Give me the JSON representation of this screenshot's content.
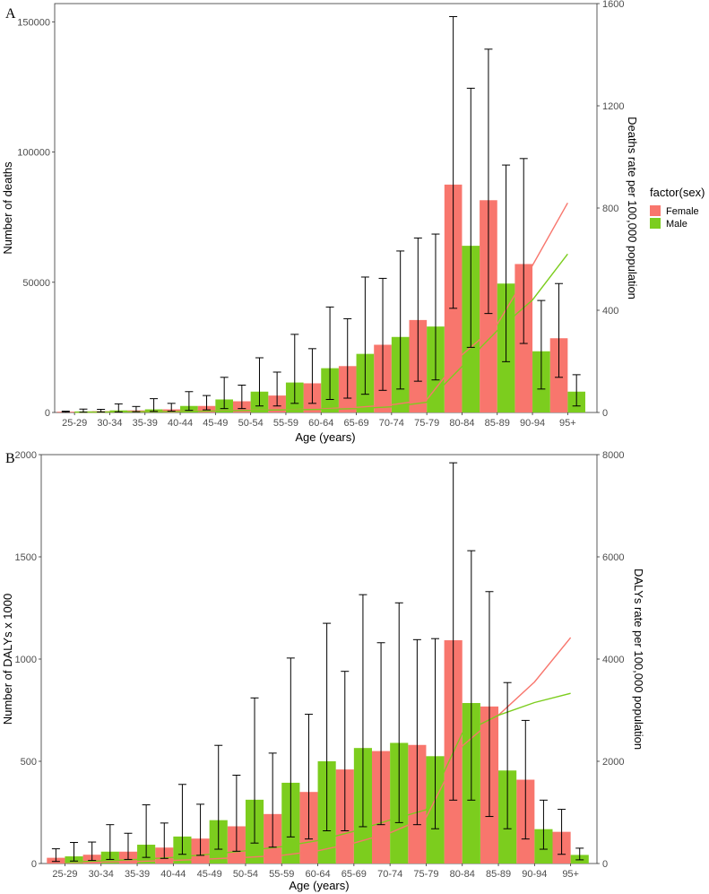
{
  "chart_data": [
    {
      "type": "bar",
      "panel_label": "A",
      "categories": [
        "25-29",
        "30-34",
        "35-39",
        "40-44",
        "45-49",
        "50-54",
        "55-59",
        "60-64",
        "65-69",
        "70-74",
        "75-79",
        "80-84",
        "85-89",
        "90-94",
        "95+"
      ],
      "xlabel": "Age (years)",
      "ylabel": "Number of deaths",
      "y2label": "Deaths rate per 100,000 population",
      "ylim": [
        0,
        157000
      ],
      "y2lim": [
        0,
        1600
      ],
      "yticks": [
        0,
        50000,
        100000,
        150000
      ],
      "y2ticks": [
        0,
        400,
        800,
        1200,
        1600
      ],
      "series": [
        {
          "name": "Female",
          "color": "#F8766D",
          "values": [
            300,
            500,
            800,
            1200,
            2500,
            4300,
            6500,
            11200,
            17800,
            26000,
            35500,
            87500,
            81500,
            57000,
            28500
          ],
          "err_low": [
            100,
            200,
            300,
            500,
            1000,
            1500,
            2500,
            3500,
            5500,
            8500,
            12000,
            40000,
            38000,
            26500,
            13500
          ],
          "err_high": [
            500,
            1200,
            2300,
            3500,
            6500,
            10500,
            15500,
            24500,
            36000,
            51500,
            67000,
            152000,
            139500,
            97500,
            49500
          ],
          "rate": [
            1,
            2,
            3,
            5,
            7,
            9,
            11,
            14,
            20,
            30,
            50,
            225,
            345,
            575,
            820
          ]
        },
        {
          "name": "Male",
          "color": "#7CCD1E",
          "values": [
            400,
            800,
            1200,
            2500,
            5000,
            8000,
            11500,
            17000,
            22500,
            29000,
            33000,
            64000,
            49500,
            23500,
            8000
          ],
          "err_low": [
            100,
            200,
            400,
            800,
            1500,
            2500,
            3500,
            5000,
            7000,
            9000,
            12500,
            25000,
            19500,
            9000,
            2500
          ],
          "err_high": [
            1300,
            3300,
            5300,
            8000,
            13500,
            21000,
            30000,
            40500,
            52000,
            62000,
            68500,
            124500,
            95000,
            43000,
            14500
          ],
          "rate": [
            1,
            2,
            3,
            4,
            6,
            8,
            10,
            12,
            15,
            22,
            40,
            180,
            320,
            440,
            620
          ]
        }
      ]
    },
    {
      "type": "bar",
      "panel_label": "B",
      "categories": [
        "25-29",
        "30-34",
        "35-39",
        "40-44",
        "45-49",
        "50-54",
        "55-59",
        "60-64",
        "65-69",
        "70-74",
        "75-79",
        "80-84",
        "85-89",
        "90-94",
        "95+"
      ],
      "xlabel": "Age (years)",
      "ylabel": "Number of DALYs x 1000",
      "y2label": "DALYs rate per 100,000 population",
      "ylim": [
        0,
        2000
      ],
      "y2lim": [
        0,
        8000
      ],
      "yticks": [
        0,
        500,
        1000,
        1500,
        2000
      ],
      "y2ticks": [
        0,
        2000,
        4000,
        6000,
        8000
      ],
      "series": [
        {
          "name": "Female",
          "color": "#F8766D",
          "values": [
            28,
            43,
            58,
            78,
            122,
            182,
            242,
            350,
            460,
            550,
            580,
            1092,
            768,
            410,
            155
          ],
          "err_low": [
            10,
            15,
            20,
            25,
            40,
            60,
            80,
            120,
            160,
            190,
            190,
            310,
            230,
            120,
            45
          ],
          "err_high": [
            72,
            105,
            148,
            198,
            290,
            432,
            540,
            730,
            940,
            1080,
            1095,
            1960,
            1330,
            700,
            265
          ],
          "rate": [
            20,
            30,
            40,
            60,
            90,
            120,
            160,
            250,
            400,
            600,
            900,
            2300,
            2900,
            3550,
            4420
          ]
        },
        {
          "name": "Male",
          "color": "#7CCD1E",
          "values": [
            35,
            58,
            92,
            132,
            212,
            312,
            395,
            500,
            565,
            590,
            525,
            785,
            455,
            168,
            42
          ],
          "err_low": [
            12,
            20,
            30,
            45,
            70,
            100,
            130,
            160,
            180,
            200,
            170,
            310,
            170,
            70,
            18
          ],
          "err_high": [
            103,
            190,
            287,
            387,
            578,
            810,
            1005,
            1175,
            1315,
            1275,
            1100,
            1530,
            885,
            310,
            75
          ],
          "rate": [
            25,
            50,
            80,
            120,
            180,
            250,
            330,
            450,
            630,
            850,
            1050,
            2550,
            2900,
            3150,
            3330
          ]
        }
      ]
    }
  ],
  "legend": {
    "title": "factor(sex)",
    "items": [
      "Female",
      "Male"
    ]
  }
}
